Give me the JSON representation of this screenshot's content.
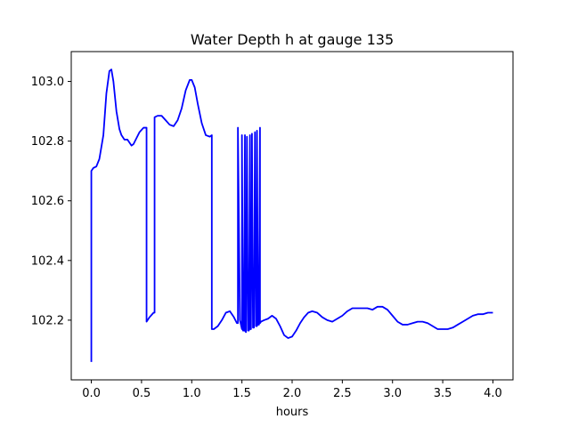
{
  "chart_data": {
    "type": "line",
    "title": "Water Depth h at gauge 135",
    "xlabel": "hours",
    "ylabel": "",
    "xlim": [
      -0.2,
      4.2
    ],
    "ylim": [
      102.0,
      103.1
    ],
    "xticks": [
      0.0,
      0.5,
      1.0,
      1.5,
      2.0,
      2.5,
      3.0,
      3.5,
      4.0
    ],
    "xtick_labels": [
      "0.0",
      "0.5",
      "1.0",
      "1.5",
      "2.0",
      "2.5",
      "3.0",
      "3.5",
      "4.0"
    ],
    "yticks": [
      102.2,
      102.4,
      102.6,
      102.8,
      103.0
    ],
    "ytick_labels": [
      "102.2",
      "102.4",
      "102.6",
      "102.8",
      "103.0"
    ],
    "grid": false,
    "series": [
      {
        "color": "#0000ff",
        "x": [
          0.0,
          0.0,
          0.02,
          0.05,
          0.08,
          0.12,
          0.15,
          0.18,
          0.2,
          0.22,
          0.25,
          0.28,
          0.3,
          0.33,
          0.36,
          0.4,
          0.42,
          0.45,
          0.48,
          0.52,
          0.55,
          0.55,
          0.58,
          0.62,
          0.63,
          0.63,
          0.66,
          0.7,
          0.74,
          0.78,
          0.82,
          0.86,
          0.9,
          0.94,
          0.98,
          1.0,
          1.03,
          1.06,
          1.1,
          1.14,
          1.18,
          1.2,
          1.2,
          1.22,
          1.26,
          1.3,
          1.34,
          1.38,
          1.42,
          1.45,
          1.46,
          1.46,
          1.48,
          1.5,
          1.5,
          1.51,
          1.52,
          1.53,
          1.53,
          1.54,
          1.55,
          1.56,
          1.57,
          1.58,
          1.58,
          1.59,
          1.6,
          1.61,
          1.62,
          1.63,
          1.64,
          1.65,
          1.65,
          1.66,
          1.67,
          1.68,
          1.68,
          1.69,
          1.72,
          1.76,
          1.8,
          1.84,
          1.88,
          1.92,
          1.96,
          2.0,
          2.04,
          2.08,
          2.12,
          2.16,
          2.2,
          2.25,
          2.3,
          2.35,
          2.4,
          2.45,
          2.5,
          2.55,
          2.6,
          2.65,
          2.7,
          2.75,
          2.8,
          2.85,
          2.9,
          2.95,
          3.0,
          3.05,
          3.1,
          3.15,
          3.2,
          3.25,
          3.3,
          3.35,
          3.4,
          3.45,
          3.5,
          3.55,
          3.6,
          3.65,
          3.7,
          3.75,
          3.8,
          3.85,
          3.9,
          3.95,
          4.0
        ],
        "y": [
          102.06,
          102.7,
          102.71,
          102.715,
          102.74,
          102.82,
          102.96,
          103.035,
          103.04,
          103.0,
          102.9,
          102.84,
          102.82,
          102.805,
          102.805,
          102.785,
          102.79,
          102.81,
          102.83,
          102.845,
          102.845,
          102.195,
          102.21,
          102.225,
          102.225,
          102.88,
          102.885,
          102.885,
          102.87,
          102.855,
          102.85,
          102.87,
          102.91,
          102.97,
          103.005,
          103.005,
          102.98,
          102.925,
          102.86,
          102.82,
          102.815,
          102.82,
          102.17,
          102.17,
          102.18,
          102.2,
          102.225,
          102.23,
          102.21,
          102.19,
          102.19,
          102.845,
          102.2,
          102.17,
          102.82,
          102.165,
          102.165,
          102.82,
          102.165,
          102.16,
          102.815,
          102.165,
          102.165,
          102.82,
          102.17,
          102.17,
          102.825,
          102.175,
          102.175,
          102.83,
          102.18,
          102.18,
          102.835,
          102.185,
          102.185,
          102.845,
          102.19,
          102.195,
          102.2,
          102.205,
          102.215,
          102.205,
          102.18,
          102.15,
          102.14,
          102.145,
          102.165,
          102.19,
          102.21,
          102.225,
          102.23,
          102.225,
          102.21,
          102.2,
          102.195,
          102.205,
          102.215,
          102.23,
          102.24,
          102.24,
          102.24,
          102.24,
          102.235,
          102.245,
          102.245,
          102.235,
          102.215,
          102.195,
          102.185,
          102.185,
          102.19,
          102.195,
          102.195,
          102.19,
          102.18,
          102.17,
          102.17,
          102.17,
          102.175,
          102.185,
          102.195,
          102.205,
          102.215,
          102.22,
          102.22,
          102.225,
          102.225
        ]
      }
    ]
  }
}
